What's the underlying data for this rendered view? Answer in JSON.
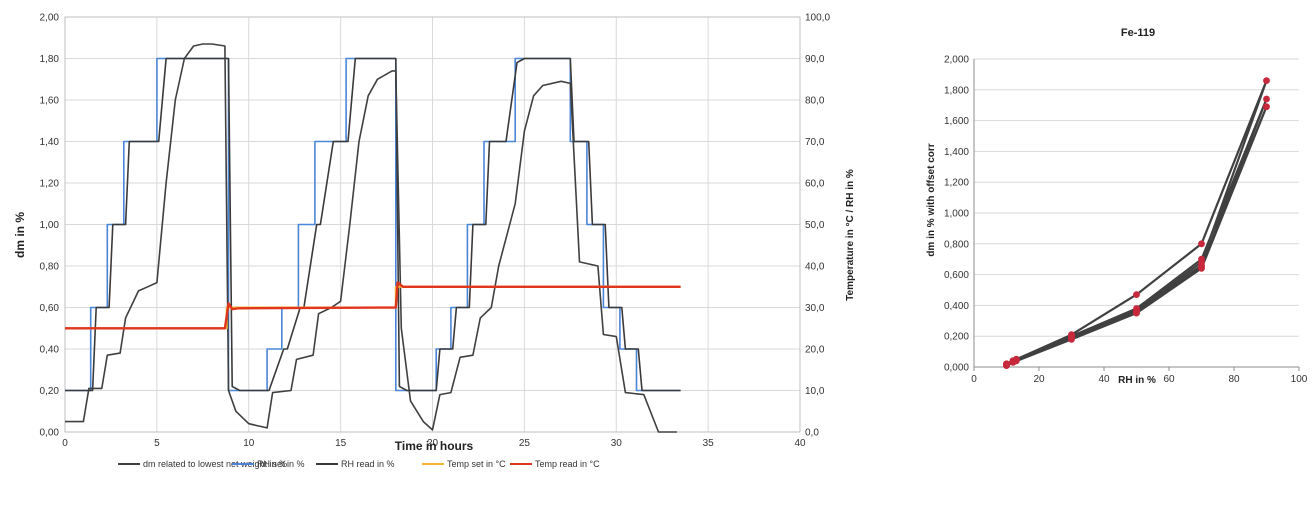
{
  "chart_data": [
    {
      "type": "line",
      "title": "",
      "xlabel": "Time in hours",
      "ylabel": "dm in %",
      "y2label": "Temperature in °C / RH in %",
      "xlim": [
        0,
        40
      ],
      "ylim": [
        0,
        2.0
      ],
      "y2lim": [
        0,
        100
      ],
      "grid": true,
      "legend_position": "bottom",
      "x_ticks": [
        "0",
        "5",
        "10",
        "15",
        "20",
        "25",
        "30",
        "35",
        "40"
      ],
      "y_ticks": [
        "0,00",
        "0,20",
        "0,40",
        "0,60",
        "0,80",
        "1,00",
        "1,20",
        "1,40",
        "1,60",
        "1,80",
        "2,00"
      ],
      "y2_ticks": [
        "0,0",
        "10,0",
        "20,0",
        "30,0",
        "40,0",
        "50,0",
        "60,0",
        "70,0",
        "80,0",
        "90,0",
        "100,0"
      ],
      "series": [
        {
          "name": "dm  related to lowest net weight in   %",
          "color": "#404040",
          "axis": "left",
          "x": [
            0,
            1,
            1.3,
            2,
            2.3,
            3,
            3.3,
            4,
            4.5,
            5,
            5.5,
            6,
            6.5,
            7,
            7.5,
            8,
            8.7,
            8.9,
            9.3,
            10,
            11,
            11.3,
            12.3,
            12.6,
            13.5,
            13.8,
            14.5,
            15,
            15.5,
            16,
            16.5,
            17,
            17.8,
            18,
            18.3,
            18.8,
            19.5,
            20,
            20.4,
            21,
            21.5,
            22.2,
            22.6,
            23.2,
            23.6,
            24.5,
            25,
            25.5,
            26,
            27,
            27.5,
            28,
            29,
            29.3,
            30,
            30.5,
            31.5,
            32.3,
            33.3
          ],
          "y": [
            0.05,
            0.05,
            0.21,
            0.21,
            0.37,
            0.38,
            0.55,
            0.68,
            0.7,
            0.72,
            1.2,
            1.6,
            1.8,
            1.86,
            1.87,
            1.87,
            1.86,
            0.2,
            0.1,
            0.04,
            0.02,
            0.19,
            0.2,
            0.35,
            0.37,
            0.57,
            0.6,
            0.63,
            1.0,
            1.4,
            1.62,
            1.7,
            1.74,
            1.74,
            0.5,
            0.15,
            0.05,
            0.01,
            0.18,
            0.19,
            0.36,
            0.37,
            0.55,
            0.6,
            0.8,
            1.1,
            1.45,
            1.62,
            1.67,
            1.69,
            1.68,
            0.82,
            0.8,
            0.47,
            0.46,
            0.19,
            0.18,
            0.0,
            0.0
          ]
        },
        {
          "name": "RH set in %",
          "color": "#4a86d8",
          "axis": "right",
          "x": [
            0,
            1.4,
            1.4,
            2.3,
            2.3,
            3.2,
            3.2,
            4.1,
            4.1,
            5.0,
            5.0,
            8.9,
            8.9,
            9.3,
            9.3,
            11.0,
            11.0,
            11.8,
            11.8,
            12.7,
            12.7,
            13.6,
            13.6,
            14.5,
            14.5,
            15.3,
            15.3,
            18.0,
            18.0,
            19.0,
            19.0,
            20.2,
            20.2,
            21.0,
            21.0,
            21.9,
            21.9,
            22.8,
            22.8,
            23.7,
            23.7,
            24.5,
            24.5,
            27.5,
            27.5,
            28.4,
            28.4,
            29.3,
            29.3,
            30.2,
            30.2,
            31.1,
            31.1,
            31.9,
            31.9,
            33.5
          ],
          "y": [
            10,
            10,
            30,
            30,
            50,
            50,
            70,
            70,
            70,
            70,
            90,
            90,
            10,
            10,
            10,
            10,
            20,
            20,
            30,
            30,
            50,
            50,
            70,
            70,
            70,
            70,
            90,
            90,
            10,
            10,
            10,
            10,
            20,
            20,
            30,
            30,
            50,
            50,
            70,
            70,
            70,
            70,
            90,
            90,
            70,
            70,
            50,
            50,
            30,
            30,
            20,
            20,
            10,
            10,
            10,
            10
          ]
        },
        {
          "name": "RH read in %",
          "color": "#3a3a3a",
          "axis": "right",
          "x": [
            0,
            1.5,
            1.7,
            2.4,
            2.6,
            3.3,
            3.5,
            4.2,
            4.4,
            5.1,
            5.5,
            8.9,
            9.1,
            9.5,
            11.0,
            11.1,
            11.9,
            12.1,
            12.8,
            13.0,
            13.7,
            13.9,
            14.6,
            14.8,
            15.4,
            15.8,
            18.0,
            18.2,
            18.6,
            19.0,
            20.2,
            20.4,
            21.1,
            21.3,
            22.0,
            22.2,
            22.9,
            23.1,
            23.8,
            24.0,
            24.6,
            25.0,
            27.5,
            27.7,
            28.5,
            28.7,
            29.4,
            29.6,
            30.3,
            30.5,
            31.2,
            31.4,
            32.0,
            32.2,
            33.5
          ],
          "y": [
            10,
            10,
            30,
            30,
            50,
            50,
            70,
            70,
            70,
            70,
            90,
            90,
            11,
            10,
            10,
            10,
            20,
            20,
            30,
            30,
            50,
            50,
            70,
            70,
            70,
            90,
            90,
            11,
            10,
            10,
            10,
            20,
            20,
            30,
            30,
            50,
            50,
            70,
            70,
            70,
            89,
            90,
            90,
            70,
            70,
            50,
            50,
            30,
            30,
            20,
            20,
            10,
            10,
            10,
            10
          ]
        },
        {
          "name": "Temp set in °C",
          "color": "#f5b731",
          "axis": "right",
          "x": [
            0,
            8.8,
            8.8,
            18.0,
            18.0,
            33.5
          ],
          "y": [
            25,
            25,
            30,
            30,
            35,
            35
          ]
        },
        {
          "name": "Temp read in °C",
          "color": "#e0361c",
          "axis": "right",
          "x": [
            0,
            8.7,
            8.9,
            9.1,
            9.4,
            18.0,
            18.1,
            18.4,
            33.5
          ],
          "y": [
            25,
            25,
            31,
            29.6,
            29.8,
            30,
            36,
            35,
            35
          ]
        }
      ]
    },
    {
      "type": "scatter",
      "title": "Fe-119",
      "xlabel": "RH in %",
      "ylabel": "dm in % with offset corr",
      "xlim": [
        0,
        100
      ],
      "ylim": [
        0,
        2.0
      ],
      "grid": true,
      "x_ticks": [
        "0",
        "20",
        "40",
        "60",
        "80",
        "100"
      ],
      "y_ticks": [
        "0,000",
        "0,200",
        "0,400",
        "0,600",
        "0,800",
        "1,000",
        "1,200",
        "1,400",
        "1,600",
        "1,800",
        "2,000"
      ],
      "line_color": "#404040",
      "marker_color": "#c8283c",
      "cycles": [
        {
          "x": [
            10,
            10,
            12,
            30,
            50,
            70,
            90,
            70,
            50,
            30,
            13,
            10
          ],
          "y": [
            0.01,
            0.02,
            0.04,
            0.2,
            0.37,
            0.68,
            1.86,
            0.8,
            0.47,
            0.21,
            0.05,
            0.02
          ]
        },
        {
          "x": [
            10,
            12,
            30,
            50,
            70,
            90,
            70,
            50,
            30,
            13,
            10
          ],
          "y": [
            0.02,
            0.04,
            0.19,
            0.36,
            0.65,
            1.74,
            0.7,
            0.38,
            0.2,
            0.05,
            0.02
          ]
        },
        {
          "x": [
            10,
            12,
            30,
            50,
            70,
            90,
            70,
            50,
            30,
            13,
            10
          ],
          "y": [
            0.01,
            0.03,
            0.18,
            0.35,
            0.64,
            1.69,
            0.66,
            0.37,
            0.19,
            0.04,
            0.01
          ]
        }
      ]
    }
  ]
}
